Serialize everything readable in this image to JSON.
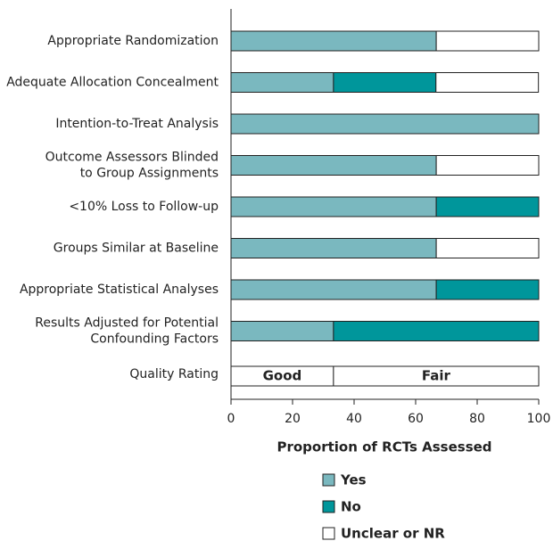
{
  "chart_data": {
    "type": "stacked-bar-horizontal",
    "categories": [
      [
        "Appropriate Randomization"
      ],
      [
        "Adequate Allocation Concealment"
      ],
      [
        "Intention-to-Treat Analysis"
      ],
      [
        "Outcome Assessors Blinded",
        "to Group Assignments"
      ],
      [
        "<10% Loss to Follow-up"
      ],
      [
        "Groups Similar at Baseline"
      ],
      [
        "Appropriate Statistical Analyses"
      ],
      [
        "Results Adjusted for Potential",
        "Confounding Factors"
      ]
    ],
    "series": [
      {
        "name": "Yes",
        "color": "#7ab8bf",
        "values": [
          66.7,
          33.3,
          100,
          66.7,
          66.7,
          66.7,
          66.7,
          33.3
        ]
      },
      {
        "name": "No",
        "color": "#00969b",
        "values": [
          0,
          33.3,
          0,
          0,
          33.3,
          0,
          33.3,
          66.7
        ]
      },
      {
        "name": "Unclear or NR",
        "color": "#ffffff",
        "values": [
          33.3,
          33.3,
          0,
          33.3,
          0,
          33.3,
          0,
          0
        ]
      }
    ],
    "quality_rating": {
      "label": "Quality Rating",
      "color": "#ffffff",
      "segments": [
        {
          "name": "Good",
          "value": 33.3
        },
        {
          "name": "Fair",
          "value": 66.7
        }
      ]
    },
    "xlabel": "Proportion of RCTs Assessed",
    "xlim": [
      0,
      100
    ],
    "xticks": [
      0,
      20,
      40,
      60,
      80,
      100
    ]
  }
}
